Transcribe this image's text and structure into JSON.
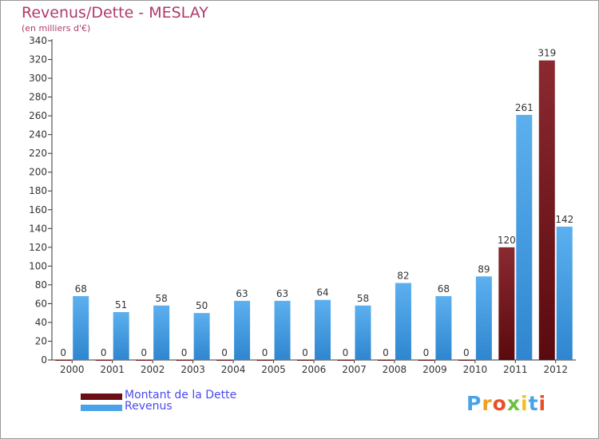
{
  "title": "Revenus/Dette - MESLAY",
  "subtitle": "(en milliers d'€)",
  "logo_text": "Proxiti",
  "chart_data": {
    "type": "bar",
    "categories": [
      "2000",
      "2001",
      "2002",
      "2003",
      "2004",
      "2005",
      "2006",
      "2007",
      "2008",
      "2009",
      "2010",
      "2011",
      "2012"
    ],
    "series": [
      {
        "name": "Montant de la Dette",
        "color": "#7a1f24",
        "values": [
          0,
          0,
          0,
          0,
          0,
          0,
          0,
          0,
          0,
          0,
          0,
          120,
          319
        ]
      },
      {
        "name": "Revenus",
        "color": "#4aa3e8",
        "values": [
          68,
          51,
          58,
          50,
          63,
          63,
          64,
          58,
          82,
          68,
          89,
          261,
          142
        ]
      }
    ],
    "yticks": [
      0,
      20,
      40,
      60,
      80,
      100,
      120,
      140,
      160,
      180,
      200,
      220,
      240,
      260,
      280,
      300,
      320,
      340
    ],
    "ylim": [
      0,
      340
    ],
    "grid": false,
    "legend_position": "bottom-left"
  },
  "legend": [
    {
      "label": "Montant de la Dette",
      "color": "#6b0f14"
    },
    {
      "label": "Revenus",
      "color": "#4aa3e8"
    }
  ]
}
